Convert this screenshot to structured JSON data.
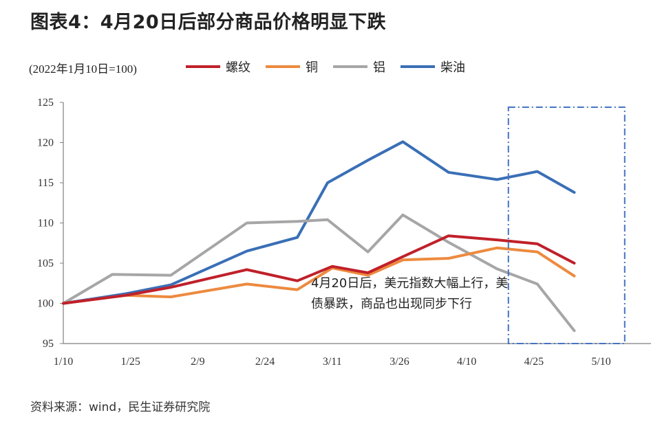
{
  "title": "图表4：4月20日后部分商品价格明显下跌",
  "unit_label": "(2022年1月10日=100)",
  "annotation": "4月20日后，美元指数大幅上行，美债暴跌，商品也出现同步下行",
  "source": "资料来源：wind，民生证券研究院",
  "colors": {
    "螺纹": "#c0202a",
    "铜": "#ed8a3f",
    "铝": "#a6a6a6",
    "柴油": "#3a6fb6",
    "highlight_box": "#4472c4",
    "axis": "#7f7f7f"
  },
  "chart_data": {
    "type": "line",
    "title": "4月20日后部分商品价格明显下跌",
    "ylabel": "(2022年1月10日=100)",
    "ylim": [
      95,
      125
    ],
    "yticks": [
      95,
      100,
      105,
      110,
      115,
      120,
      125
    ],
    "xlim": [
      0,
      11.5
    ],
    "xticks": [
      {
        "label": "1/10",
        "pos": 0
      },
      {
        "label": "1/25",
        "pos": 1
      },
      {
        "label": "2/9",
        "pos": 2
      },
      {
        "label": "2/24",
        "pos": 3
      },
      {
        "label": "3/11",
        "pos": 4
      },
      {
        "label": "3/26",
        "pos": 5
      },
      {
        "label": "4/10",
        "pos": 6
      },
      {
        "label": "4/25",
        "pos": 7
      },
      {
        "label": "5/10",
        "pos": 8
      }
    ],
    "x": [
      0,
      0.93,
      1.6,
      2.73,
      3.48,
      4.0,
      4.53,
      5.05,
      5.73,
      6.45,
      7.05,
      7.6,
      8.13
    ],
    "series": [
      {
        "name": "螺纹",
        "values": [
          100,
          101,
          102,
          104.2,
          102.8,
          104.6,
          103.8,
          105.8,
          108.4,
          107.9,
          107.4,
          105,
          null
        ]
      },
      {
        "name": "铜",
        "values": [
          100,
          101,
          100.8,
          102.4,
          101.7,
          104.4,
          103.5,
          105.4,
          105.6,
          106.9,
          106.4,
          103.4,
          null
        ]
      },
      {
        "name": "铝",
        "values": [
          100,
          103.6,
          103.5,
          110,
          110.2,
          110.4,
          106.4,
          111,
          107.6,
          104.3,
          102.4,
          96.6,
          null
        ]
      },
      {
        "name": "柴油",
        "values": [
          100,
          101.2,
          102.3,
          106.5,
          108.2,
          115,
          117.8,
          120.1,
          116.3,
          115.4,
          116.4,
          113.8,
          null
        ]
      }
    ],
    "series_x": [
      [
        0,
        0.93,
        1.6,
        2.73,
        3.48,
        4.0,
        4.53,
        5.05,
        5.73,
        6.45,
        7.05,
        7.6
      ],
      [
        0,
        0.93,
        1.6,
        2.73,
        3.48,
        4.0,
        4.53,
        5.05,
        5.73,
        6.45,
        7.05,
        7.6
      ],
      [
        0,
        0.73,
        1.6,
        2.73,
        3.48,
        3.93,
        4.53,
        5.05,
        5.73,
        6.45,
        7.05,
        7.6
      ],
      [
        0,
        0.93,
        1.6,
        2.73,
        3.48,
        3.93,
        4.53,
        5.05,
        5.73,
        6.45,
        7.05,
        7.6
      ]
    ],
    "highlight_region": {
      "x_from": 6.62,
      "x_to": 8.35,
      "y_from": 95,
      "y_to": 124.4
    },
    "legend_position": "top",
    "grid": false
  }
}
